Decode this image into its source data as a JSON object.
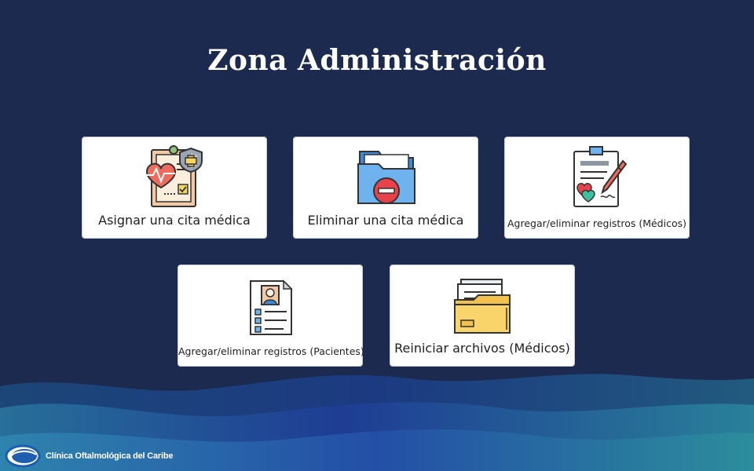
{
  "page": {
    "title": "Zona Administración"
  },
  "cards": [
    {
      "label": "Asignar una cita médica",
      "icon": "medical-record-icon"
    },
    {
      "label": "Eliminar una cita médica",
      "icon": "folder-delete-icon"
    },
    {
      "label": "Agregar/eliminar registros (Médicos)",
      "icon": "clipboard-sign-icon"
    },
    {
      "label": "Agregar/eliminar registros (Pacientes)",
      "icon": "patient-profile-icon"
    },
    {
      "label": "Reiniciar archivos (Médicos)",
      "icon": "files-folder-icon"
    }
  ],
  "footer": {
    "logo_text": "Clínica Oftalmológica del Caribe"
  },
  "colors": {
    "background": "#1b2a4e",
    "card": "#ffffff",
    "wave_light": "#2f7fa8",
    "wave_dark": "#1d3c8a"
  }
}
